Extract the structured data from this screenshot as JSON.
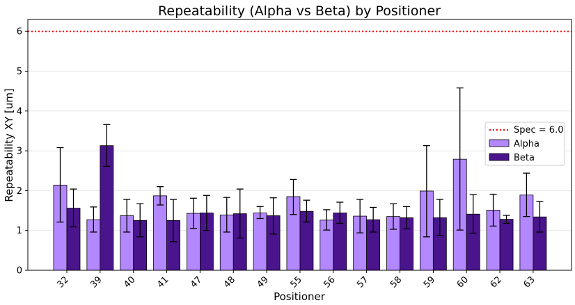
{
  "chart_data": {
    "type": "bar",
    "title": "Repeatability (Alpha vs Beta) by Positioner",
    "xlabel": "Positioner",
    "ylabel": "Repeatability XY [um]",
    "ylim": [
      0,
      6.3
    ],
    "yticks": [
      "0",
      "1",
      "2",
      "3",
      "4",
      "5",
      "6"
    ],
    "grid": "horizontal",
    "legend_position": "right",
    "categories": [
      "32",
      "39",
      "40",
      "41",
      "47",
      "48",
      "49",
      "55",
      "56",
      "57",
      "58",
      "59",
      "60",
      "62",
      "63"
    ],
    "series": [
      {
        "name": "Alpha",
        "color": "#b388ff",
        "values": [
          2.14,
          1.27,
          1.37,
          1.87,
          1.43,
          1.39,
          1.44,
          1.85,
          1.26,
          1.36,
          1.35,
          1.99,
          2.79,
          1.51,
          1.89
        ],
        "err_low": [
          1.21,
          0.96,
          0.96,
          1.64,
          1.05,
          0.96,
          1.3,
          1.4,
          1.01,
          0.94,
          1.03,
          0.84,
          1.01,
          1.11,
          1.35
        ],
        "err_high": [
          3.08,
          1.59,
          1.78,
          2.1,
          1.81,
          1.83,
          1.6,
          2.28,
          1.52,
          1.78,
          1.67,
          3.13,
          4.58,
          1.91,
          2.44
        ]
      },
      {
        "name": "Beta",
        "color": "#4a148c",
        "values": [
          1.56,
          3.13,
          1.25,
          1.25,
          1.44,
          1.42,
          1.37,
          1.48,
          1.44,
          1.27,
          1.32,
          1.32,
          1.41,
          1.28,
          1.34
        ],
        "err_low": [
          1.09,
          2.61,
          0.84,
          0.72,
          1.0,
          0.81,
          0.91,
          1.21,
          1.18,
          0.96,
          1.04,
          0.87,
          0.93,
          1.18,
          0.96
        ],
        "err_high": [
          2.04,
          3.66,
          1.67,
          1.78,
          1.88,
          2.04,
          1.82,
          1.76,
          1.71,
          1.58,
          1.6,
          1.78,
          1.9,
          1.38,
          1.73
        ]
      }
    ],
    "reference_line": {
      "label": "Spec = 6.0",
      "value": 6.0,
      "color": "#ff0000"
    }
  }
}
